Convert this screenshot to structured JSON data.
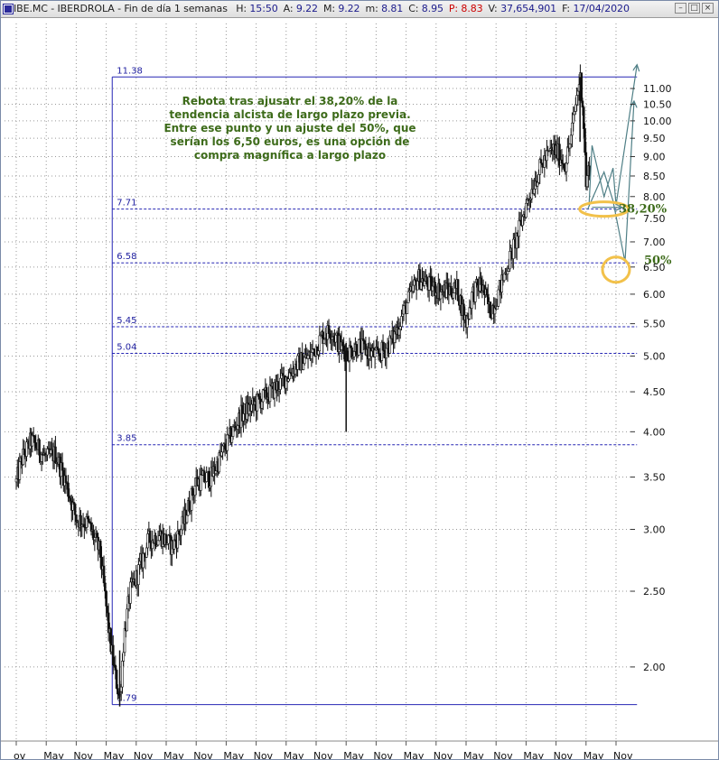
{
  "window": {
    "ticker": "IBE.MC",
    "name": "IBERDROLA",
    "period": "Fin de día 1 semanas",
    "header_fields": [
      {
        "label": "H:",
        "value": "15:50",
        "color": "normal"
      },
      {
        "label": "A:",
        "value": "9.22",
        "color": "normal"
      },
      {
        "label": "M:",
        "value": "9.22",
        "color": "normal"
      },
      {
        "label": "m:",
        "value": "8.81",
        "color": "normal"
      },
      {
        "label": "C:",
        "value": "8.95",
        "color": "normal"
      },
      {
        "label": "P:",
        "value": "8.83",
        "color": "red"
      },
      {
        "label": "V:",
        "value": "37,654,901",
        "color": "normal"
      },
      {
        "label": "F:",
        "value": "17/04/2020",
        "color": "normal"
      }
    ],
    "buttons": [
      "minimize",
      "maximize",
      "close"
    ]
  },
  "chart_data": {
    "type": "candlestick",
    "scale": "log",
    "frequency": "weekly",
    "ylim": [
      1.7,
      12.5
    ],
    "y_ticks": [
      2.0,
      2.5,
      3.0,
      3.5,
      4.0,
      4.5,
      5.0,
      5.5,
      6.0,
      6.5,
      7.0,
      7.5,
      8.0,
      8.5,
      9.0,
      9.5,
      10.0,
      10.5,
      11.0
    ],
    "y_tick_labels": [
      "2.00",
      "2.50",
      "3.00",
      "3.50",
      "4.00",
      "4.50",
      "5.00",
      "5.50",
      "6.00",
      "6.50",
      "7.00",
      "7.50",
      "8.00",
      "8.50",
      "9.00",
      "9.50",
      "10.00",
      "10.50",
      "11.00"
    ],
    "x_labels": [
      "ov",
      "May",
      "Nov",
      "May",
      "Nov",
      "May",
      "Nov",
      "May",
      "Nov",
      "May",
      "Nov",
      "May",
      "Nov",
      "May",
      "Nov",
      "May",
      "Nov",
      "May",
      "Nov",
      "May",
      "Nov"
    ],
    "x_range": [
      0,
      21
    ],
    "price_path": [
      [
        0.0,
        3.45
      ],
      [
        0.2,
        3.7
      ],
      [
        0.5,
        3.9
      ],
      [
        1.0,
        3.7
      ],
      [
        1.3,
        3.75
      ],
      [
        1.6,
        3.5
      ],
      [
        2.0,
        3.1
      ],
      [
        2.4,
        3.05
      ],
      [
        2.8,
        2.8
      ],
      [
        3.1,
        2.2
      ],
      [
        3.3,
        1.95
      ],
      [
        3.45,
        1.82
      ],
      [
        3.6,
        2.2
      ],
      [
        3.8,
        2.5
      ],
      [
        4.0,
        2.6
      ],
      [
        4.4,
        2.9
      ],
      [
        4.8,
        2.95
      ],
      [
        5.2,
        2.85
      ],
      [
        5.5,
        3.0
      ],
      [
        6.0,
        3.45
      ],
      [
        6.5,
        3.5
      ],
      [
        7.0,
        3.85
      ],
      [
        7.5,
        4.2
      ],
      [
        8.0,
        4.35
      ],
      [
        8.5,
        4.5
      ],
      [
        9.0,
        4.7
      ],
      [
        9.4,
        4.9
      ],
      [
        9.8,
        5.0
      ],
      [
        10.2,
        5.3
      ],
      [
        10.5,
        5.4
      ],
      [
        10.8,
        5.15
      ],
      [
        11.0,
        5.05
      ],
      [
        11.4,
        5.15
      ],
      [
        12.0,
        5.0
      ],
      [
        12.3,
        5.1
      ],
      [
        12.6,
        5.3
      ],
      [
        13.0,
        5.8
      ],
      [
        13.4,
        6.3
      ],
      [
        13.8,
        6.15
      ],
      [
        14.2,
        6.05
      ],
      [
        14.7,
        6.1
      ],
      [
        15.0,
        5.5
      ],
      [
        15.2,
        6.0
      ],
      [
        15.5,
        6.2
      ],
      [
        15.8,
        5.7
      ],
      [
        16.0,
        5.9
      ],
      [
        16.3,
        6.4
      ],
      [
        16.7,
        7.1
      ],
      [
        17.0,
        7.8
      ],
      [
        17.3,
        8.4
      ],
      [
        17.6,
        8.9
      ],
      [
        17.9,
        9.2
      ],
      [
        18.1,
        9.05
      ],
      [
        18.3,
        8.8
      ],
      [
        18.5,
        9.5
      ],
      [
        18.65,
        10.5
      ],
      [
        18.8,
        11.4
      ],
      [
        18.9,
        10.4
      ],
      [
        19.0,
        8.3
      ],
      [
        19.15,
        8.9
      ]
    ],
    "wick_spikes": [
      {
        "x": 11.0,
        "low": 4.0,
        "high": 5.2
      },
      {
        "x": 3.45,
        "low": 1.78,
        "high": 2.1
      },
      {
        "x": 18.8,
        "low": 9.4,
        "high": 11.38
      }
    ],
    "retracement_levels": [
      {
        "value": 11.38,
        "label": "11.38"
      },
      {
        "value": 7.71,
        "label": "7.71"
      },
      {
        "value": 6.58,
        "label": "6.58"
      },
      {
        "value": 5.45,
        "label": "5.45"
      },
      {
        "value": 5.04,
        "label": "5.04"
      },
      {
        "value": 3.85,
        "label": "3.85"
      },
      {
        "value": 1.79,
        "label": "1.79"
      }
    ],
    "fib_box": {
      "x_start": 3.2,
      "x_end": 20.7,
      "high": 11.38,
      "low": 1.79
    },
    "projection_arrows": [
      {
        "points": [
          [
            19.1,
            7.8
          ],
          [
            19.2,
            9.3
          ],
          [
            19.6,
            8.0
          ],
          [
            19.9,
            8.7
          ],
          [
            20.0,
            7.8
          ],
          [
            20.7,
            11.8
          ]
        ]
      },
      {
        "points": [
          [
            19.05,
            7.7
          ],
          [
            19.6,
            8.6
          ],
          [
            19.9,
            7.9
          ],
          [
            20.3,
            6.6
          ],
          [
            20.6,
            10.6
          ]
        ]
      },
      {
        "points": [
          [
            19.2,
            7.75
          ],
          [
            20.2,
            7.75
          ]
        ]
      }
    ],
    "highlight_ellipses": [
      {
        "x": 19.6,
        "y": 7.71,
        "label": "38,20%"
      },
      {
        "x": 20.0,
        "y": 6.45,
        "label": "50%"
      }
    ],
    "annotation": {
      "lines": [
        "Rebota tras ajusatr el 38,20% de la",
        "tendencia alcista de largo plazo previa.",
        "Entre ese punto y un ajuste del 50%, que",
        "serían los 6,50 euros, es una opción de",
        "compra magnífica a largo plazo"
      ],
      "color": "#3d6b1a"
    },
    "colors": {
      "candle": "#111111",
      "fib": "#2626b4",
      "grid": "#999999",
      "arrow": "#4f7f86",
      "ellipse": "#f2c14a",
      "annotation": "#3d6b1a",
      "axis_text": "#2020a0"
    }
  }
}
